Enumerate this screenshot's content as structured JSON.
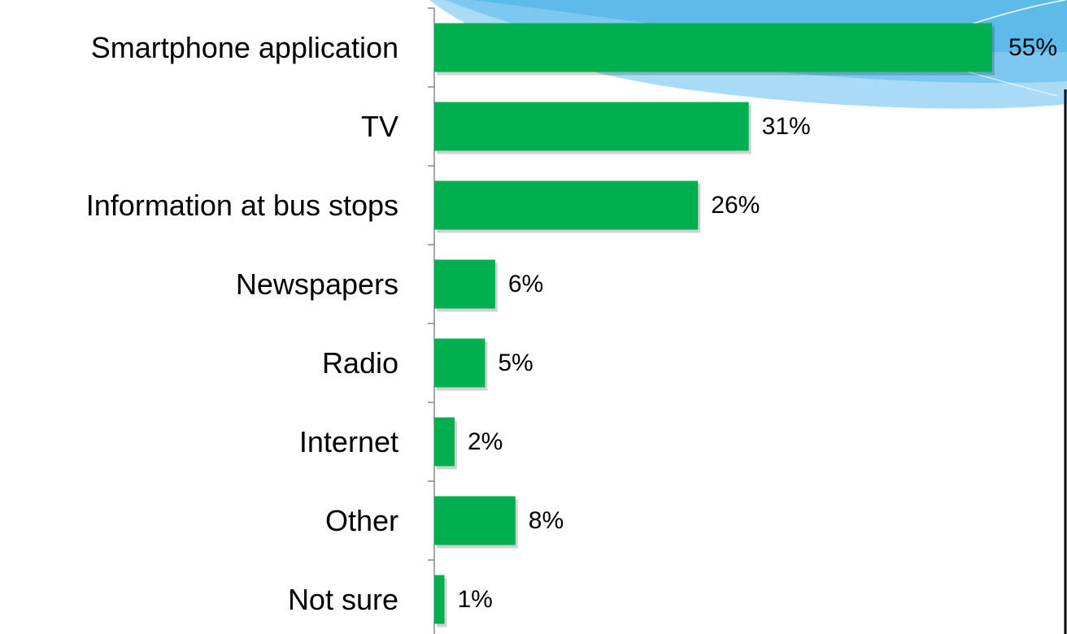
{
  "colors": {
    "bar": "#00b050",
    "axis": "#888888",
    "frame": "#000000",
    "wave_light": "#a9dbf6",
    "wave_mid": "#7cc8f0",
    "wave_dark": "#5ebae9"
  },
  "chart_data": {
    "type": "bar",
    "orientation": "horizontal",
    "categories": [
      "Smartphone application",
      "TV",
      "Information at bus stops",
      "Newspapers",
      "Radio",
      "Internet",
      "Other",
      "Not sure"
    ],
    "values": [
      55,
      31,
      26,
      6,
      5,
      2,
      8,
      1
    ],
    "value_labels": [
      "55%",
      "31%",
      "26%",
      "6%",
      "5%",
      "2%",
      "8%",
      "1%"
    ],
    "unit": "%",
    "xlim": [
      0,
      55
    ],
    "grid": false,
    "legend": "none"
  }
}
